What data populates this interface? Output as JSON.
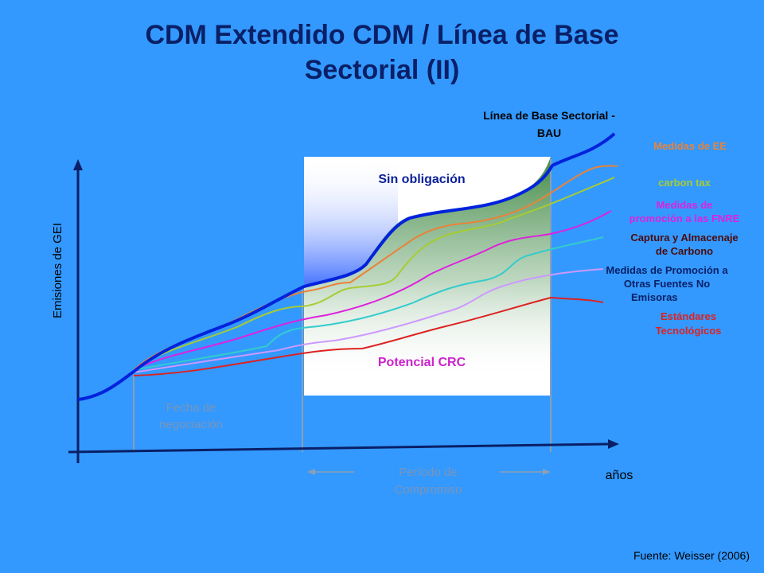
{
  "slide": {
    "title_line1": "CDM Extendido CDM / Línea de Base",
    "title_line2": "Sectorial (II)",
    "source": "Fuente: Weisser (2006)"
  },
  "axes": {
    "y_label": "Emisiones de GEI",
    "x_label": "años"
  },
  "regions": {
    "no_obligation": "Sin  obligación",
    "potential": "Potencial CRC",
    "negotiation_line1": "Fecha de",
    "negotiation_line2": "negociación",
    "period_line1": "Período de",
    "period_line2": "Compromiso"
  },
  "curves": {
    "baseline_line1": "Línea de Base Sectorial -",
    "baseline_line2": "BAU",
    "ee": "Medidas de EE",
    "carbon_tax": "carbon tax",
    "fnre_line1": "Medidas de",
    "fnre_line2": "promoción a las FNRE",
    "ccs_line1": "Captura y Almacenaje",
    "ccs_line2": "de Carbono",
    "other_line1": "Medidas de Promoción a",
    "other_line2": "Otras Fuentes No",
    "other_line3": "Emisoras",
    "standards_line1": "Estándares",
    "standards_line2": "Tecnológicos"
  },
  "colors": {
    "background": "#3399ff",
    "baseline": "#0022dd",
    "ee": "#e8833a",
    "carbon_tax": "#a6cc33",
    "fnre": "#dd22dd",
    "ccs": "#33cccc",
    "other": "#cc99ff",
    "standards": "#dd2222"
  }
}
